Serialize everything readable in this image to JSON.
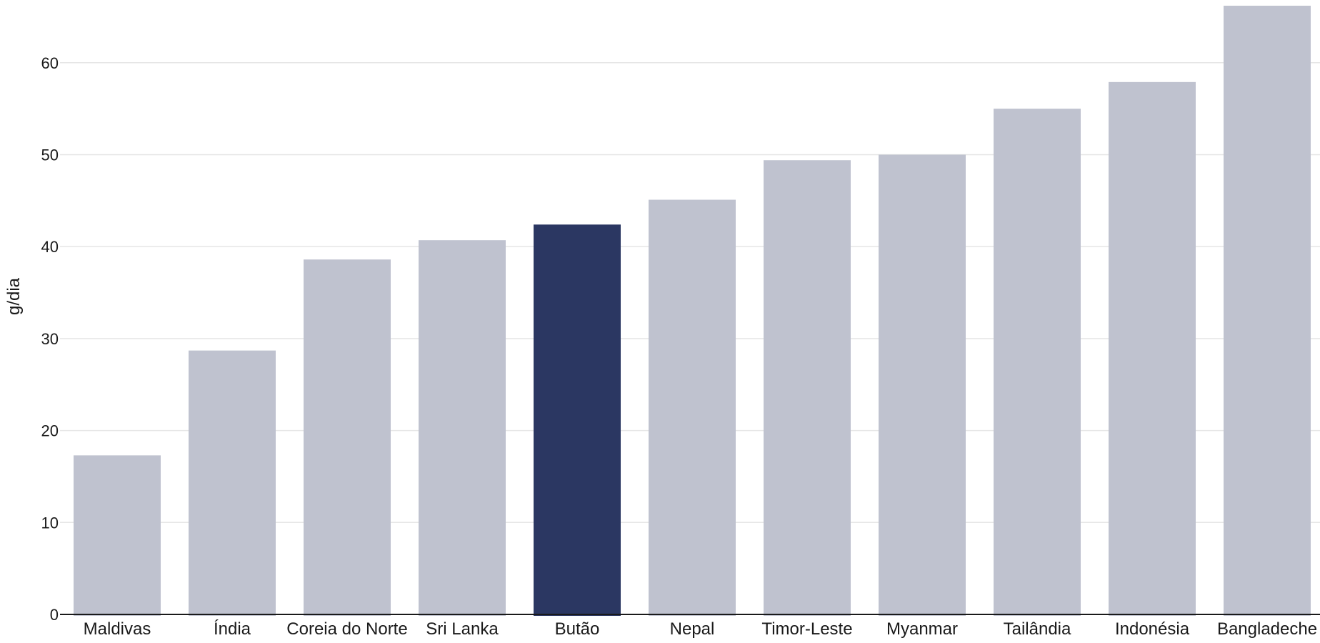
{
  "chart_data": {
    "type": "bar",
    "title": "",
    "xlabel": "",
    "ylabel": "g/dia",
    "ylim": [
      0,
      66
    ],
    "yticks": [
      0,
      10,
      20,
      30,
      40,
      50,
      60
    ],
    "grid": true,
    "legend": "none",
    "categories": [
      "Maldivas",
      "Índia",
      "Coreia do Norte",
      "Sri Lanka",
      "Butão",
      "Nepal",
      "Timor-Leste",
      "Myanmar",
      "Tailândia",
      "Indonésia",
      "Bangladeche"
    ],
    "values": [
      17.3,
      28.7,
      38.6,
      40.7,
      42.4,
      45.1,
      49.4,
      50.0,
      55.0,
      57.9,
      66.2
    ],
    "highlight_category": "Butão",
    "colors": {
      "bar": "#bfc2cf",
      "highlight": "#2b3762",
      "grid": "#e6e6e6",
      "axis": "#1a1a1a",
      "text": "#1a1a1a"
    }
  }
}
